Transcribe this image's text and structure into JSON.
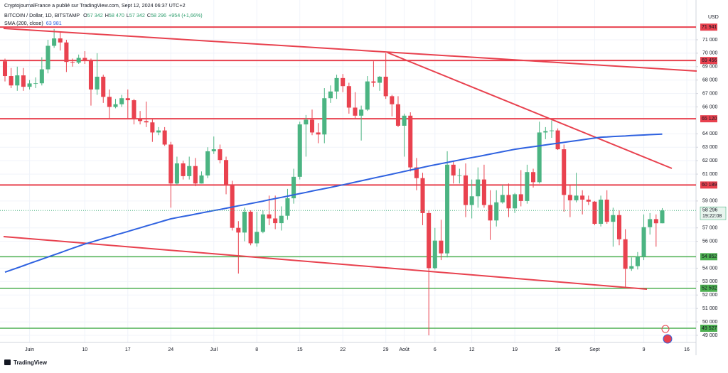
{
  "chart_data": {
    "type": "candlestick",
    "header": {
      "publisher": "CryptojournalFrance a publié sur TradingView.com, Sept 12, 2024 06:37 UTC+2",
      "symbol": "BITCOIN / Dollar, 1D, BITSTAMP",
      "quote": [
        {
          "key": "O",
          "value": "57 342"
        },
        {
          "key": "H",
          "value": "58 470"
        },
        {
          "key": "L",
          "value": "57 342"
        },
        {
          "key": "C",
          "value": "58 296"
        }
      ],
      "change": "+954 (+1,66%)"
    },
    "currency": "USD",
    "brand": "TradingView",
    "up_color": "#4bb482",
    "down_color": "#e9424f",
    "categories": [
      null,
      null,
      null,
      null,
      "Juin",
      null,
      null,
      null,
      null,
      null,
      null,
      null,
      null,
      "10",
      null,
      null,
      null,
      null,
      null,
      null,
      "17",
      null,
      null,
      null,
      null,
      null,
      null,
      "24",
      null,
      null,
      null,
      null,
      null,
      null,
      "Juil",
      null,
      null,
      null,
      null,
      null,
      null,
      "8",
      null,
      null,
      null,
      null,
      null,
      null,
      "15",
      null,
      null,
      null,
      null,
      null,
      null,
      "22",
      null,
      null,
      null,
      null,
      null,
      null,
      "29",
      null,
      null,
      "Août",
      null,
      null,
      null,
      null,
      "6",
      null,
      null,
      null,
      null,
      null,
      "12",
      null,
      null,
      null,
      null,
      null,
      null,
      "19",
      null,
      null,
      null,
      null,
      null,
      null,
      "26",
      null,
      null,
      null,
      null,
      null,
      "Sept",
      null,
      null,
      null,
      null,
      null,
      null,
      null,
      "9",
      null,
      null,
      null,
      null,
      null,
      null,
      "16",
      null
    ],
    "open": [
      69400,
      68300,
      67600,
      68350,
      67500,
      67750,
      67760,
      68800,
      70550,
      71100,
      70800,
      69350,
      69300,
      69650,
      69500,
      67300,
      68250,
      66750,
      66000,
      66200,
      66650,
      66500,
      65150,
      64950,
      64850,
      64100,
      64250,
      63200,
      60300,
      61800,
      60850,
      61600,
      60300,
      60900,
      62700,
      62850,
      62050,
      60200,
      57000,
      56650,
      58200,
      55850,
      56700,
      58000,
      57700,
      57350,
      57900,
      59200,
      60800,
      64700,
      65050,
      64100,
      63950,
      66650,
      67150,
      68150,
      67550,
      65950,
      65350,
      65800,
      67900,
      67800,
      68250,
      66800,
      66200,
      64600,
      65350,
      61500,
      60700,
      58100,
      54000,
      56050,
      55100,
      61700,
      60900,
      60900,
      58700,
      59350,
      60600,
      58700,
      57550,
      58900,
      59450,
      58450,
      59500,
      59000,
      61150,
      60400,
      64100,
      64200,
      64250,
      62850,
      59450,
      59050,
      59400,
      59100,
      58950,
      57300,
      59100,
      57450,
      57950,
      56150,
      53950,
      54150,
      54850,
      57050,
      57650,
      57342,
      null,
      null,
      null,
      null,
      null
    ],
    "high": [
      69600,
      68900,
      69000,
      68900,
      68000,
      68200,
      69700,
      71000,
      71800,
      71600,
      71000,
      69600,
      69900,
      70150,
      69600,
      70000,
      68400,
      67300,
      66600,
      66900,
      67300,
      66600,
      65700,
      66400,
      65100,
      64500,
      64500,
      63400,
      62300,
      62000,
      62300,
      62200,
      61200,
      63000,
      63800,
      63200,
      62300,
      60500,
      57500,
      58500,
      58300,
      58200,
      58300,
      59400,
      59400,
      58600,
      59900,
      61400,
      64900,
      65400,
      65800,
      64800,
      67400,
      67600,
      68400,
      68450,
      67800,
      67100,
      66100,
      68300,
      69400,
      68300,
      70000,
      66900,
      66800,
      65500,
      65600,
      62200,
      61100,
      58300,
      57000,
      57600,
      62700,
      62000,
      61400,
      61800,
      60600,
      61500,
      61700,
      59800,
      59800,
      60200,
      60300,
      59600,
      61300,
      61700,
      61400,
      64900,
      64500,
      65000,
      64400,
      63200,
      60200,
      61100,
      59800,
      59400,
      59000,
      59400,
      59800,
      58500,
      58300,
      56900,
      54800,
      55200,
      58000,
      58100,
      58000,
      58470,
      null,
      null,
      null,
      null,
      null
    ],
    "low": [
      67900,
      67400,
      67200,
      67200,
      67300,
      67400,
      67600,
      68500,
      70400,
      70200,
      68600,
      69000,
      69200,
      69200,
      66100,
      66900,
      66300,
      65100,
      65900,
      66000,
      65100,
      64700,
      64700,
      64500,
      63400,
      63900,
      63100,
      58500,
      60200,
      60600,
      60600,
      60100,
      60300,
      60700,
      62500,
      61800,
      59500,
      56800,
      53600,
      56000,
      55700,
      55600,
      56600,
      57200,
      56900,
      56800,
      57600,
      58800,
      60600,
      62300,
      63900,
      63300,
      63300,
      66300,
      66600,
      67100,
      65500,
      65100,
      63500,
      65700,
      67500,
      67200,
      66600,
      65300,
      64500,
      62300,
      61200,
      59800,
      57200,
      49000,
      53900,
      54600,
      54800,
      60300,
      60300,
      57800,
      57700,
      58500,
      58500,
      56100,
      57100,
      58800,
      57800,
      58100,
      58600,
      58800,
      60000,
      60300,
      63600,
      63700,
      62800,
      58200,
      57800,
      58900,
      58000,
      58700,
      57200,
      57100,
      57300,
      55600,
      55700,
      52550,
      53800,
      53900,
      54600,
      56500,
      55600,
      57342,
      null,
      null,
      null,
      null,
      null
    ],
    "close": [
      68300,
      67600,
      68350,
      67500,
      67750,
      67760,
      68800,
      70550,
      71100,
      70800,
      69350,
      69300,
      69650,
      69500,
      67300,
      68250,
      66750,
      66000,
      66200,
      66650,
      66500,
      65150,
      64950,
      64850,
      64100,
      64250,
      63200,
      60300,
      61800,
      60850,
      61600,
      60300,
      60900,
      62700,
      62850,
      62050,
      60200,
      57000,
      56650,
      58200,
      55850,
      56700,
      58000,
      57700,
      57350,
      57900,
      59200,
      60800,
      64700,
      65050,
      64100,
      63950,
      66650,
      67150,
      68150,
      67550,
      65950,
      65350,
      65800,
      67900,
      67800,
      68250,
      66800,
      66200,
      64600,
      65350,
      61500,
      60700,
      58100,
      54000,
      56050,
      55100,
      61700,
      60900,
      60900,
      58700,
      59350,
      60600,
      58700,
      57550,
      58900,
      59450,
      58450,
      59500,
      59000,
      61150,
      60400,
      64100,
      64200,
      64250,
      62850,
      59450,
      59050,
      59400,
      59100,
      58950,
      57300,
      59100,
      57450,
      57950,
      56150,
      53950,
      54150,
      54850,
      57050,
      57650,
      57342,
      58296,
      null,
      null,
      null,
      null,
      null
    ],
    "last_label": "58 296",
    "countdown": "19:22:08",
    "sma": {
      "name": "SMA (200, close)",
      "color": "#2f62e0",
      "last_label": "63 981",
      "values": [
        53700,
        53860,
        54020,
        54180,
        54350,
        54510,
        54670,
        54830,
        54990,
        55150,
        55320,
        55480,
        55640,
        55800,
        55930,
        56070,
        56200,
        56330,
        56470,
        56600,
        56730,
        56870,
        57000,
        57140,
        57270,
        57400,
        57540,
        57670,
        57760,
        57850,
        57930,
        58020,
        58110,
        58200,
        58290,
        58370,
        58460,
        58550,
        58640,
        58720,
        58810,
        58900,
        58990,
        59090,
        59180,
        59270,
        59360,
        59460,
        59550,
        59640,
        59740,
        59830,
        59920,
        60010,
        60110,
        60200,
        60300,
        60400,
        60500,
        60600,
        60700,
        60800,
        60900,
        61000,
        61100,
        61200,
        61300,
        61400,
        61500,
        61600,
        61690,
        61780,
        61870,
        61960,
        62050,
        62140,
        62230,
        62310,
        62400,
        62490,
        62580,
        62670,
        62760,
        62850,
        62910,
        62980,
        63040,
        63110,
        63170,
        63240,
        63300,
        63360,
        63430,
        63490,
        63560,
        63620,
        63690,
        63750,
        63770,
        63800,
        63820,
        63840,
        63870,
        63890,
        63910,
        63940,
        63960,
        63981,
        null,
        null,
        null,
        null,
        null
      ]
    },
    "levels": [
      {
        "value": 71941,
        "label": "71 941",
        "color": "#e8414e"
      },
      {
        "value": 69456,
        "label": "69 456",
        "color": "#e8414e"
      },
      {
        "value": 65120,
        "label": "65 120",
        "color": "#e8414e"
      },
      {
        "value": 60189,
        "label": "60 189",
        "color": "#e8414e"
      },
      {
        "value": 54852,
        "label": "54 852",
        "color": "#4caf50"
      },
      {
        "value": 52502,
        "label": "52 502",
        "color": "#4caf50"
      },
      {
        "value": 49527,
        "label": "49 527",
        "color": "#4caf50"
      }
    ],
    "ylim": [
      48470,
      73960
    ],
    "yticks": [
      {
        "value": 71000,
        "label": "71 000"
      },
      {
        "value": 70000,
        "label": "70 000"
      },
      {
        "value": 69000,
        "label": "69 000"
      },
      {
        "value": 68000,
        "label": "68 000"
      },
      {
        "value": 67000,
        "label": "67 000"
      },
      {
        "value": 66000,
        "label": "66 000"
      },
      {
        "value": 64000,
        "label": "64 000"
      },
      {
        "value": 63000,
        "label": "63 000"
      },
      {
        "value": 62000,
        "label": "62 000"
      },
      {
        "value": 61000,
        "label": "61 000"
      },
      {
        "value": 59000,
        "label": "59 000"
      },
      {
        "value": 57000,
        "label": "57 000"
      },
      {
        "value": 56000,
        "label": "56 000"
      },
      {
        "value": 54000,
        "label": "54 000"
      },
      {
        "value": 53000,
        "label": "53 000"
      },
      {
        "value": 52000,
        "label": "52 000"
      },
      {
        "value": 51000,
        "label": "51 000"
      },
      {
        "value": 50000,
        "label": "50 000"
      },
      {
        "value": 49000,
        "label": "49 000"
      }
    ],
    "grid": true
  }
}
